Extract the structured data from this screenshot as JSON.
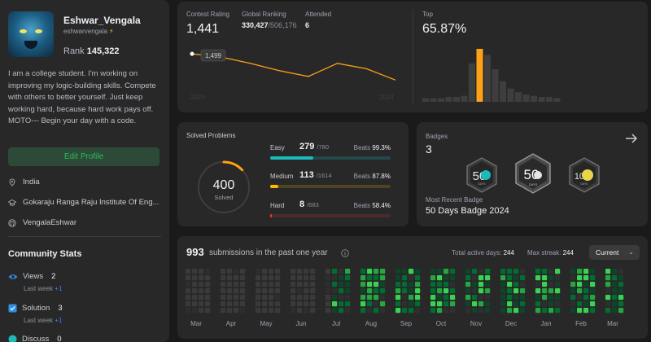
{
  "profile": {
    "name": "Eshwar_Vengala",
    "handle": "eshwarvengala",
    "rank_label": "Rank",
    "rank_value": "145,322",
    "bio": "I am a college student. I'm working on improving my logic-building skills. Compete with others to better yourself. Just keep working hard, because hard work pays off. MOTO--- Begin your day with a code.",
    "edit_label": "Edit Profile",
    "location": "India",
    "school": "Gokaraju Ranga Raju Institute Of Eng...",
    "github": "VengalaEshwar"
  },
  "community": {
    "title": "Community Stats",
    "items": [
      {
        "label": "Views",
        "value": "2",
        "sub_prefix": "Last week",
        "sub_delta": "+1"
      },
      {
        "label": "Solution",
        "value": "3",
        "sub_prefix": "Last week",
        "sub_delta": "+1"
      },
      {
        "label": "Discuss",
        "value": "0"
      }
    ]
  },
  "contest": {
    "rating_label": "Contest Rating",
    "rating_value": "1,441",
    "global_label": "Global Ranking",
    "global_value": "330,427",
    "global_total": "/506,176",
    "attended_label": "Attended",
    "attended_value": "6",
    "tooltip_value": "1,499",
    "year_start": "2024",
    "year_end": "2024",
    "line_values": [
      1499,
      1492,
      1478,
      1462,
      1449,
      1478,
      1466,
      1441
    ],
    "top_label": "Top",
    "top_value": "65.87%",
    "histogram": [
      3,
      3,
      3,
      4,
      4,
      5,
      32,
      44,
      39,
      27,
      17,
      11,
      8,
      6,
      5,
      4,
      4,
      3
    ],
    "highlight_index": 7
  },
  "solved": {
    "title": "Solved Problems",
    "total": "400",
    "total_label": "Solved",
    "beats_label": "Beats",
    "rows": [
      {
        "name": "Easy",
        "count": "279",
        "total": "/780",
        "beats": "99.3%",
        "fraction": 0.358,
        "color": "#1cbaba",
        "track": "#24494a"
      },
      {
        "name": "Medium",
        "count": "113",
        "total": "/1614",
        "beats": "87.8%",
        "fraction": 0.07,
        "color": "#ffb700",
        "track": "#4f4322"
      },
      {
        "name": "Hard",
        "count": "8",
        "total": "/683",
        "beats": "58.4%",
        "fraction": 0.012,
        "color": "#f63737",
        "track": "#4d2a2a"
      }
    ]
  },
  "badges": {
    "title": "Badges",
    "count": "3",
    "recent_label": "Most Recent Badge",
    "recent_name": "50 Days Badge 2024",
    "badge_texts": [
      "50",
      "DAYS",
      "100"
    ]
  },
  "submissions": {
    "count": "993",
    "label": "submissions in the past one year",
    "active_label": "Total active days:",
    "active_value": "244",
    "streak_label": "Max streak:",
    "streak_value": "244",
    "select_value": "Current",
    "months": [
      "Mar",
      "Apr",
      "May",
      "Jun",
      "Jul",
      "Aug",
      "Sep",
      "Oct",
      "Nov",
      "Dec",
      "Jan",
      "Feb",
      "Mar"
    ]
  },
  "colors": {
    "accent_green": "#2cbb5d",
    "orange": "#ffa116",
    "panel": "#282828",
    "bg": "#1a1a1a"
  }
}
